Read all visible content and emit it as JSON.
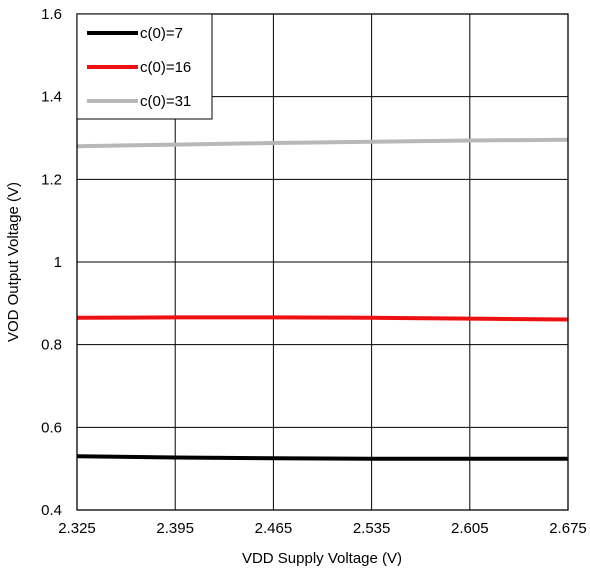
{
  "chart_data": {
    "type": "line",
    "title": "",
    "xlabel": "VDD Supply Voltage (V)",
    "ylabel": "VOD Output Voltage (V)",
    "xlim": [
      2.325,
      2.675
    ],
    "ylim": [
      0.4,
      1.6
    ],
    "x_ticks": [
      "2.325",
      "2.395",
      "2.465",
      "2.535",
      "2.605",
      "2.675"
    ],
    "y_ticks": [
      "0.4",
      "0.6",
      "0.8",
      "1",
      "1.2",
      "1.4",
      "1.6"
    ],
    "grid": true,
    "legend_position": "top-left",
    "series": [
      {
        "name": "c(0)=7",
        "color": "#000000",
        "x": [
          2.325,
          2.395,
          2.465,
          2.535,
          2.605,
          2.675
        ],
        "values": [
          0.53,
          0.527,
          0.525,
          0.524,
          0.524,
          0.524
        ]
      },
      {
        "name": "c(0)=16",
        "color": "#ee1111",
        "x": [
          2.325,
          2.395,
          2.465,
          2.535,
          2.605,
          2.675
        ],
        "values": [
          0.865,
          0.866,
          0.866,
          0.865,
          0.863,
          0.861
        ]
      },
      {
        "name": "c(0)=31",
        "color": "#b8b8b8",
        "x": [
          2.325,
          2.395,
          2.465,
          2.535,
          2.605,
          2.675
        ],
        "values": [
          1.28,
          1.284,
          1.288,
          1.291,
          1.294,
          1.296
        ]
      }
    ]
  }
}
